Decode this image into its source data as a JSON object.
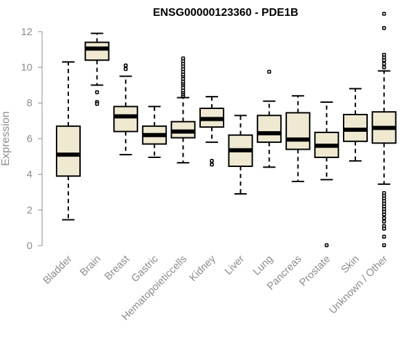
{
  "chart_data": {
    "type": "boxplot",
    "title": "ENSG00000123360 - PDE1B",
    "xlabel": "",
    "ylabel": "Expression",
    "ylim": [
      0,
      13
    ],
    "yticks": [
      0,
      2,
      4,
      6,
      8,
      10,
      12
    ],
    "categories": [
      "Bladder",
      "Brain",
      "Breast",
      "Gastric",
      "Hematopoietic cells",
      "Kidney",
      "Liver",
      "Lung",
      "Pancreas",
      "Prostate",
      "Skin",
      "Unknown / Other"
    ],
    "display_labels": [
      "Bladder",
      "Brain",
      "Breast",
      "Gastric",
      "Hematopoieticcells",
      "Kidney",
      "Liver",
      "Lung",
      "Pancreas",
      "Prostate",
      "Skin",
      "Unknown / Other"
    ],
    "series": [
      {
        "name": "Bladder",
        "whisker_low": 1.45,
        "q1": 3.9,
        "median": 5.1,
        "q3": 6.7,
        "whisker_high": 10.3,
        "outliers": []
      },
      {
        "name": "Brain",
        "whisker_low": 9.0,
        "q1": 10.4,
        "median": 11.05,
        "q3": 11.4,
        "whisker_high": 11.9,
        "outliers": [
          8.6,
          8.05,
          7.95
        ]
      },
      {
        "name": "Breast",
        "whisker_low": 5.1,
        "q1": 6.4,
        "median": 7.25,
        "q3": 7.8,
        "whisker_high": 9.5,
        "outliers": [
          9.9,
          10.1
        ]
      },
      {
        "name": "Gastric",
        "whisker_low": 4.95,
        "q1": 5.7,
        "median": 6.2,
        "q3": 6.7,
        "whisker_high": 7.8,
        "outliers": []
      },
      {
        "name": "Hematopoietic cells",
        "whisker_low": 4.65,
        "q1": 6.05,
        "median": 6.4,
        "q3": 6.95,
        "whisker_high": 8.3,
        "outliers": [
          8.4,
          8.5,
          8.6,
          8.7,
          8.85,
          9.0,
          9.1,
          9.2,
          9.35,
          9.5,
          9.6,
          9.75,
          9.9,
          10.05,
          10.2,
          10.35,
          10.5
        ]
      },
      {
        "name": "Kidney",
        "whisker_low": 5.8,
        "q1": 6.65,
        "median": 7.1,
        "q3": 7.7,
        "whisker_high": 8.35,
        "outliers": [
          4.75,
          4.55
        ]
      },
      {
        "name": "Liver",
        "whisker_low": 2.9,
        "q1": 4.45,
        "median": 5.35,
        "q3": 6.2,
        "whisker_high": 7.3,
        "outliers": []
      },
      {
        "name": "Lung",
        "whisker_low": 4.4,
        "q1": 5.8,
        "median": 6.3,
        "q3": 7.3,
        "whisker_high": 8.1,
        "outliers": [
          9.75
        ]
      },
      {
        "name": "Pancreas",
        "whisker_low": 3.6,
        "q1": 5.4,
        "median": 5.95,
        "q3": 7.45,
        "whisker_high": 8.4,
        "outliers": []
      },
      {
        "name": "Prostate",
        "whisker_low": 3.7,
        "q1": 4.95,
        "median": 5.6,
        "q3": 6.35,
        "whisker_high": 8.05,
        "outliers": [
          0.02
        ]
      },
      {
        "name": "Skin",
        "whisker_low": 4.75,
        "q1": 5.85,
        "median": 6.5,
        "q3": 7.35,
        "whisker_high": 8.8,
        "outliers": []
      },
      {
        "name": "Unknown / Other",
        "whisker_low": 3.45,
        "q1": 5.75,
        "median": 6.6,
        "q3": 7.5,
        "whisker_high": 9.8,
        "outliers": [
          13.0,
          12.2,
          10.7,
          10.55,
          10.4,
          10.2,
          10.0,
          2.95,
          2.8,
          2.65,
          2.5,
          2.35,
          2.2,
          2.05,
          1.9,
          1.75,
          1.55,
          1.35,
          1.1,
          0.95,
          0.5,
          0.02
        ]
      }
    ],
    "grid": false,
    "legend": "none"
  }
}
